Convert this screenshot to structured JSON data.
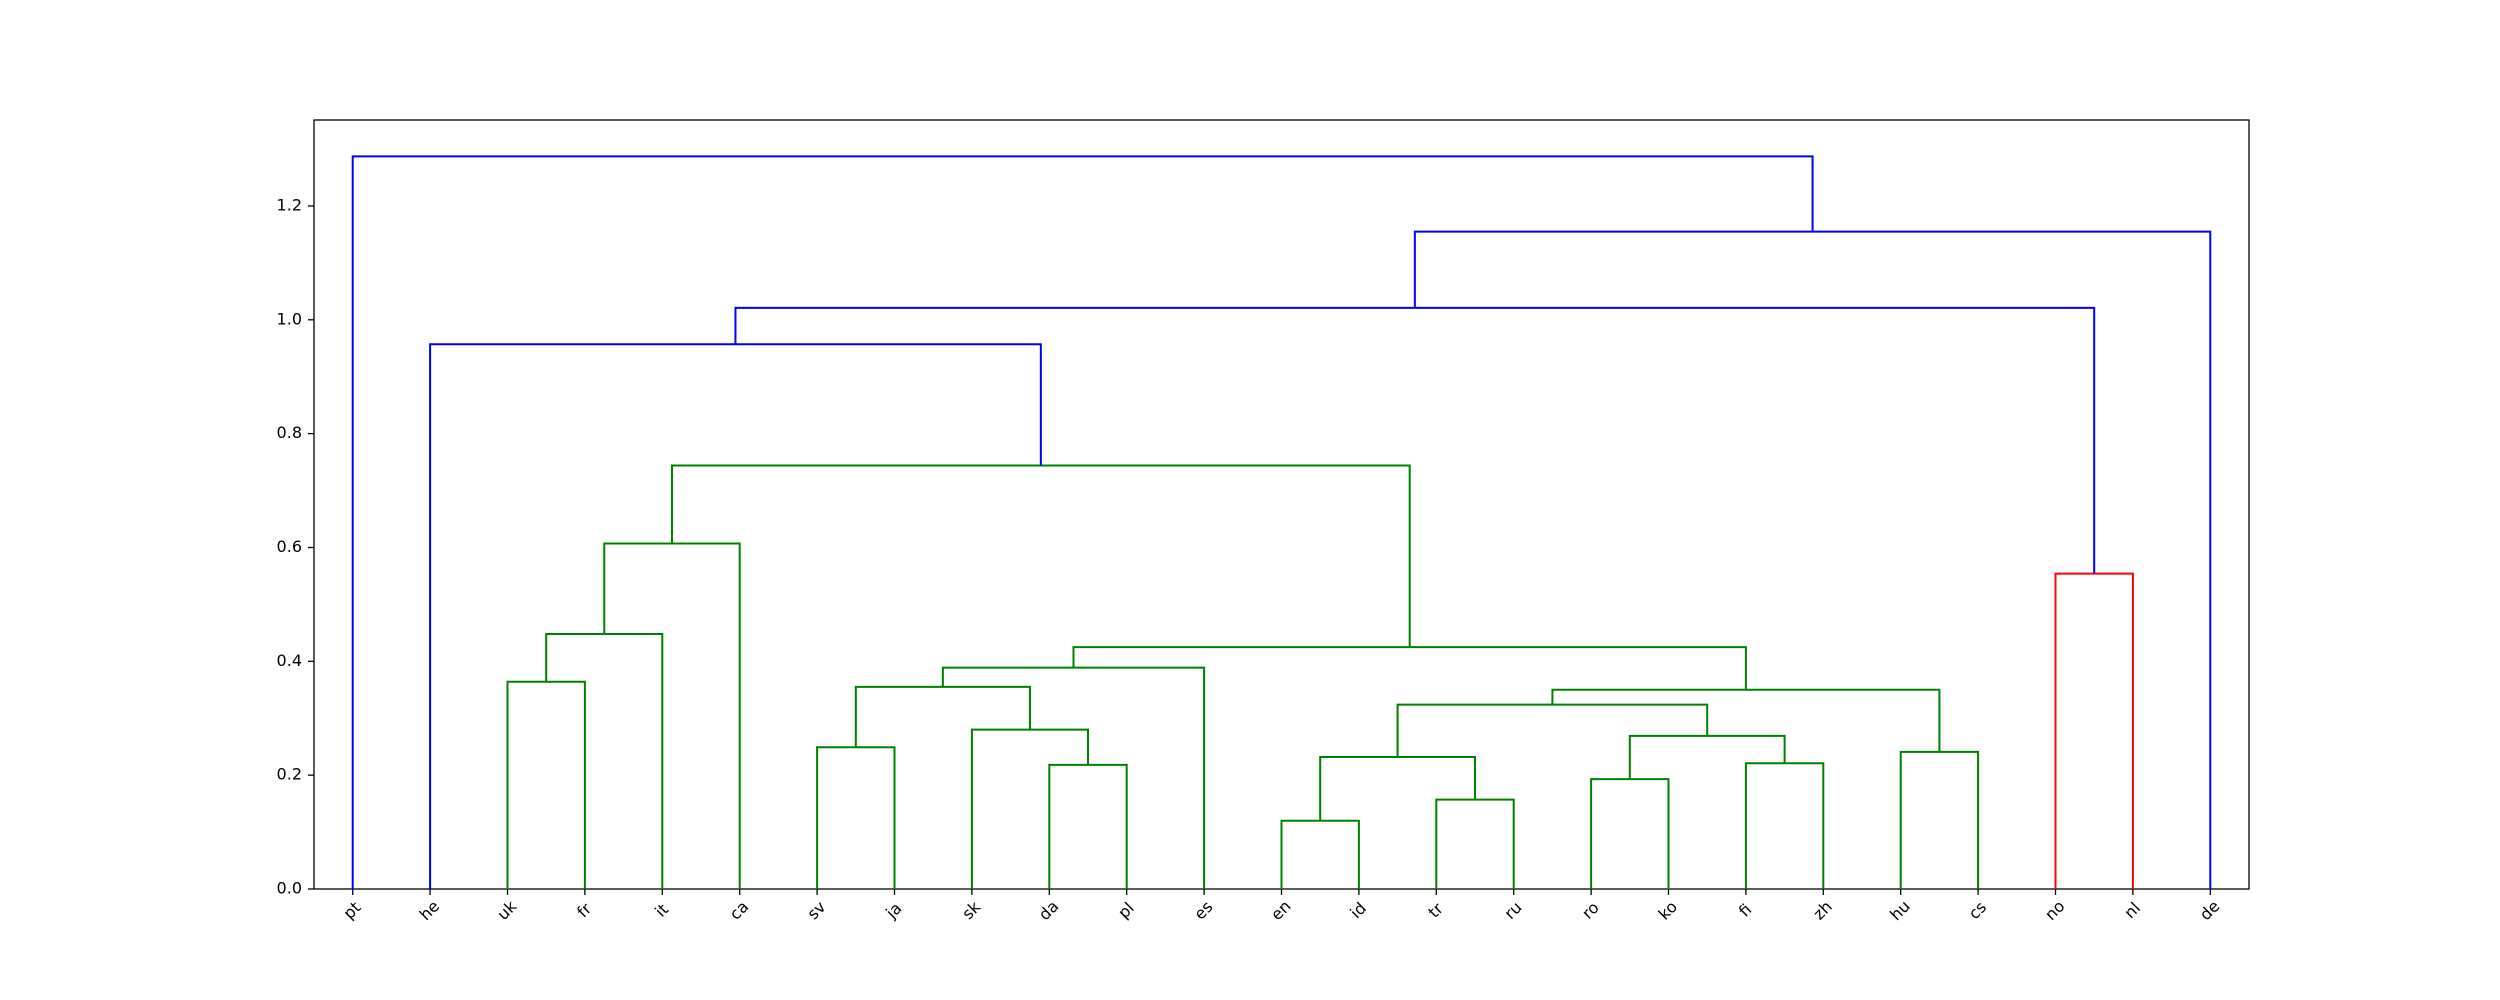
{
  "chart_data": {
    "type": "dendrogram",
    "leaves": [
      "pt",
      "he",
      "uk",
      "fr",
      "it",
      "ca",
      "sv",
      "ja",
      "sk",
      "da",
      "pl",
      "es",
      "en",
      "id",
      "tr",
      "ru",
      "ro",
      "ko",
      "fi",
      "zh",
      "hu",
      "cs",
      "no",
      "nl",
      "de"
    ],
    "links": [
      {
        "left": 12,
        "right": 13,
        "height": 0.12,
        "color": "#008000"
      },
      {
        "left": 14,
        "right": 15,
        "height": 0.157,
        "color": "#008000"
      },
      {
        "left": 16,
        "right": 17,
        "height": 0.193,
        "color": "#008000"
      },
      {
        "left": 9,
        "right": 10,
        "height": 0.218,
        "color": "#008000"
      },
      {
        "left": 18,
        "right": 19,
        "height": 0.221,
        "color": "#008000"
      },
      {
        "left": 20,
        "right": 21,
        "height": 0.241,
        "color": "#008000"
      },
      {
        "left": 6,
        "right": 7,
        "height": 0.249,
        "color": "#008000"
      },
      {
        "left": 25,
        "right": 26,
        "height": 0.232,
        "color": "#008000"
      },
      {
        "left": 27,
        "right": 29,
        "height": 0.269,
        "color": "#008000"
      },
      {
        "left": 8,
        "right": 28,
        "height": 0.28,
        "color": "#008000"
      },
      {
        "left": 32,
        "right": 33,
        "height": 0.324,
        "color": "#008000"
      },
      {
        "left": 35,
        "right": 30,
        "height": 0.35,
        "color": "#008000"
      },
      {
        "left": 31,
        "right": 34,
        "height": 0.355,
        "color": "#008000"
      },
      {
        "left": 37,
        "right": 11,
        "height": 0.389,
        "color": "#008000"
      },
      {
        "left": 38,
        "right": 36,
        "height": 0.425,
        "color": "#008000"
      },
      {
        "left": 2,
        "right": 3,
        "height": 0.364,
        "color": "#008000"
      },
      {
        "left": 40,
        "right": 4,
        "height": 0.448,
        "color": "#008000"
      },
      {
        "left": 41,
        "right": 5,
        "height": 0.607,
        "color": "#008000"
      },
      {
        "left": 42,
        "right": 39,
        "height": 0.744,
        "color": "#008000"
      },
      {
        "left": 22,
        "right": 23,
        "height": 0.554,
        "color": "#ff0000"
      },
      {
        "left": 1,
        "right": 43,
        "height": 0.957,
        "color": "#0000ff"
      },
      {
        "left": 45,
        "right": 44,
        "height": 1.021,
        "color": "#0000ff"
      },
      {
        "left": 46,
        "right": 24,
        "height": 1.155,
        "color": "#0000ff"
      },
      {
        "left": 0,
        "right": 47,
        "height": 1.287,
        "color": "#0000ff"
      }
    ],
    "ylim": [
      0,
      1.351
    ],
    "yticks": [
      {
        "value": 0,
        "label": "0.0"
      },
      0.2,
      0.4,
      0.6,
      0.8,
      {
        "value": 1,
        "label": "1.0"
      },
      1.2
    ]
  }
}
